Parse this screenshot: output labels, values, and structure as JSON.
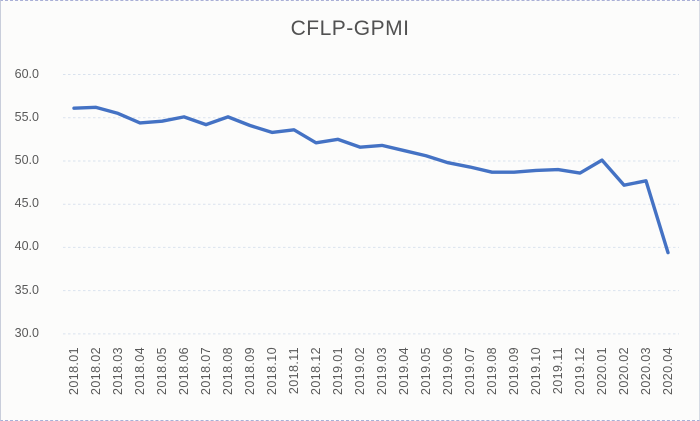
{
  "chart_data": {
    "type": "line",
    "title": "CFLP-GPMI",
    "categories": [
      "2018.01",
      "2018.02",
      "2018.03",
      "2018.04",
      "2018.05",
      "2018.06",
      "2018.07",
      "2018.08",
      "2018.09",
      "2018.10",
      "2018.11",
      "2018.12",
      "2019.01",
      "2019.02",
      "2019.03",
      "2019.04",
      "2019.05",
      "2019.06",
      "2019.07",
      "2019.08",
      "2019.09",
      "2019.10",
      "2019.11",
      "2019.12",
      "2020.01",
      "2020.02",
      "2020.03",
      "2020.04"
    ],
    "values": [
      56.1,
      56.2,
      55.5,
      54.4,
      54.6,
      55.1,
      54.2,
      55.1,
      54.1,
      53.3,
      53.6,
      52.1,
      52.5,
      51.6,
      51.8,
      51.2,
      50.6,
      49.8,
      49.3,
      48.7,
      48.7,
      48.9,
      49.0,
      48.6,
      50.1,
      47.2,
      47.7,
      39.4
    ],
    "xlabel": "",
    "ylabel": "",
    "ylim": [
      30.0,
      60.0
    ],
    "y_ticks": [
      {
        "value": 60,
        "label": "60.0"
      },
      {
        "value": 55,
        "label": "55.0"
      },
      {
        "value": 50,
        "label": "50.0"
      },
      {
        "value": 45,
        "label": "45.0"
      },
      {
        "value": 40,
        "label": "40.0"
      },
      {
        "value": 35,
        "label": "35.0"
      },
      {
        "value": 30,
        "label": "30.0"
      }
    ],
    "grid": "horizontal-dashed",
    "legend": "none",
    "markers": "none",
    "line_color": "#4472C4",
    "gridline_color": "#d9e2ee",
    "text_color": "#595959",
    "title_color": "#515151",
    "background_color": "#fcfcfb"
  }
}
